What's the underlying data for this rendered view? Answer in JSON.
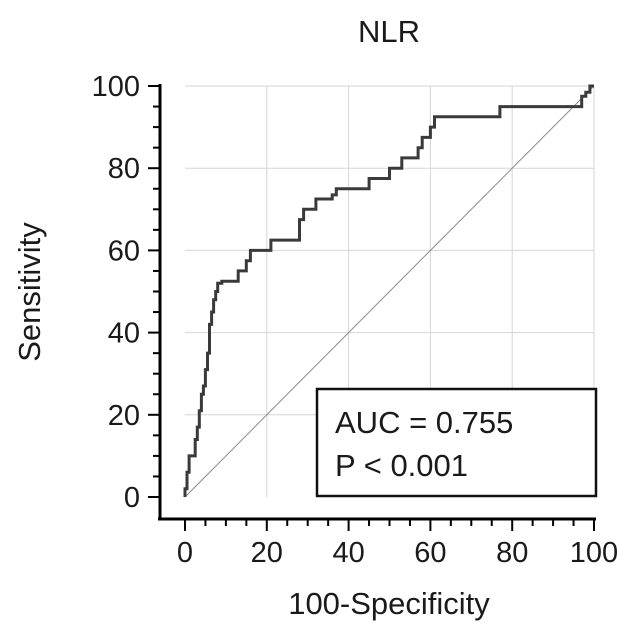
{
  "chart_data": {
    "type": "line",
    "title": "NLR",
    "xlabel": "100-Specificity",
    "ylabel": "Sensitivity",
    "xlim": [
      0,
      100
    ],
    "ylim": [
      0,
      100
    ],
    "xticks": [
      "0",
      "20",
      "40",
      "60",
      "80",
      "100"
    ],
    "yticks": [
      "0",
      "20",
      "40",
      "60",
      "80",
      "100"
    ],
    "grid": true,
    "annotation": {
      "line1": "AUC = 0.755",
      "line2": "P < 0.001"
    },
    "series": [
      {
        "role": "roc-curve",
        "color": "#3a3a3a",
        "x": [
          0,
          0,
          0.5,
          0.5,
          1,
          1,
          2.5,
          2.5,
          3,
          3,
          3.5,
          3.5,
          4,
          4,
          4.5,
          4.5,
          5,
          5,
          5.5,
          5.5,
          6,
          6,
          6.5,
          6.5,
          7,
          7,
          7.5,
          7.5,
          8,
          8,
          9,
          9,
          13,
          13,
          15,
          15,
          16,
          16,
          17,
          17,
          21,
          21,
          28,
          28,
          29,
          29,
          32,
          32,
          35,
          35,
          36,
          36,
          37,
          37,
          38,
          38,
          45,
          45,
          50,
          50,
          53,
          53,
          57,
          57,
          58,
          58,
          60,
          60,
          61,
          61,
          62,
          62,
          77,
          77,
          97,
          97,
          98,
          98,
          99,
          99,
          100
        ],
        "y": [
          0,
          2,
          2,
          6,
          6,
          10,
          10,
          14,
          14,
          17,
          17,
          21,
          21,
          25,
          25,
          27,
          27,
          31,
          31,
          35,
          35,
          42,
          42,
          45,
          45,
          48,
          48,
          50,
          50,
          52,
          52,
          52.5,
          52.5,
          55,
          55,
          57.5,
          57.5,
          60,
          60,
          60,
          60,
          62.5,
          62.5,
          67.5,
          67.5,
          70,
          70,
          72.5,
          72.5,
          72.5,
          72.5,
          73.5,
          73.5,
          75,
          75,
          75,
          75,
          77.5,
          77.5,
          80,
          80,
          82.5,
          82.5,
          85,
          85,
          87.5,
          87.5,
          90,
          90,
          92.5,
          92.5,
          92.5,
          92.5,
          95,
          95,
          97.5,
          97.5,
          98.5,
          98.5,
          100,
          100
        ]
      },
      {
        "role": "reference-diagonal",
        "color": "#8a8a8a",
        "x": [
          0,
          100
        ],
        "y": [
          0,
          100
        ]
      }
    ]
  }
}
